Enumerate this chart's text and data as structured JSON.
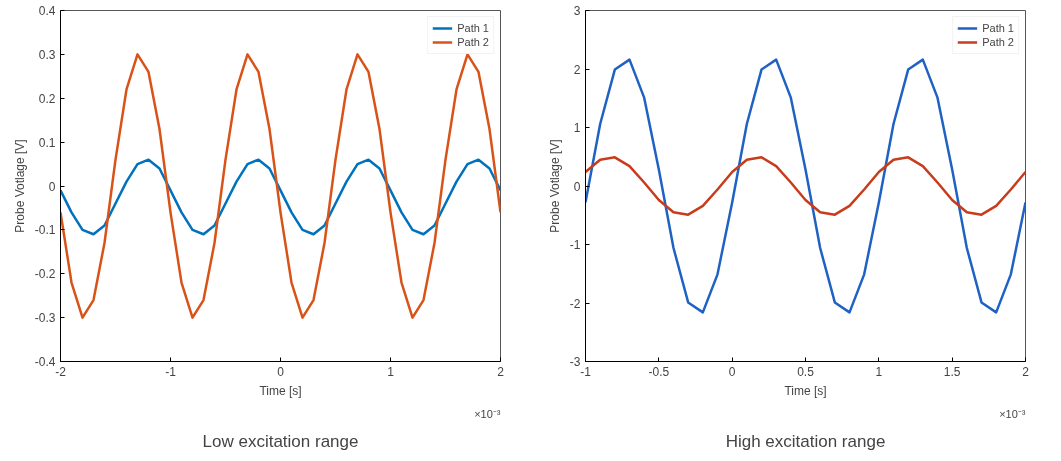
{
  "chart_data": [
    {
      "type": "line",
      "xlabel": "Time [s]",
      "ylabel": "Probe Votlage [V]",
      "xlim": [
        -2,
        2
      ],
      "ylim": [
        -0.4,
        0.4
      ],
      "xticks": [
        -2,
        -1,
        0,
        1,
        2
      ],
      "yticks": [
        -0.4,
        -0.3,
        -0.2,
        -0.1,
        0,
        0.1,
        0.2,
        0.3,
        0.4
      ],
      "grid": false,
      "legend": "top right",
      "annotations": [
        "×10⁻³",
        "Low excitation range"
      ],
      "x": [
        -2,
        -1.9,
        -1.8,
        -1.7,
        -1.6,
        -1.5,
        -1.4,
        -1.3,
        -1.2,
        -1.1,
        -1,
        -0.9,
        -0.8,
        -0.7,
        -0.6,
        -0.5,
        -0.4,
        -0.3,
        -0.2,
        -0.1,
        0,
        0.1,
        0.2,
        0.3,
        0.4,
        0.5,
        0.6,
        0.7,
        0.8,
        0.9,
        1,
        1.1,
        1.2,
        1.3,
        1.4,
        1.5,
        1.6,
        1.7,
        1.8,
        1.9,
        2
      ],
      "series": [
        {
          "name": "Path 1",
          "color": "#0072bd",
          "values": [
            -0.01,
            -0.06,
            -0.1,
            -0.11,
            -0.09,
            -0.04,
            0.01,
            0.05,
            0.06,
            0.04,
            -0.01,
            -0.06,
            -0.1,
            -0.11,
            -0.09,
            -0.04,
            0.01,
            0.05,
            0.06,
            0.04,
            -0.01,
            -0.06,
            -0.1,
            -0.11,
            -0.09,
            -0.04,
            0.01,
            0.05,
            0.06,
            0.04,
            -0.01,
            -0.06,
            -0.1,
            -0.11,
            -0.09,
            -0.04,
            0.01,
            0.05,
            0.06,
            0.04,
            -0.01
          ]
        },
        {
          "name": "Path 2",
          "color": "#d95319",
          "values": [
            -0.06,
            -0.22,
            -0.3,
            -0.26,
            -0.13,
            0.06,
            0.22,
            0.3,
            0.26,
            0.13,
            -0.06,
            -0.22,
            -0.3,
            -0.26,
            -0.13,
            0.06,
            0.22,
            0.3,
            0.26,
            0.13,
            -0.06,
            -0.22,
            -0.3,
            -0.26,
            -0.13,
            0.06,
            0.22,
            0.3,
            0.26,
            0.13,
            -0.06,
            -0.22,
            -0.3,
            -0.26,
            -0.13,
            0.06,
            0.22,
            0.3,
            0.26,
            0.13,
            -0.06
          ]
        }
      ]
    },
    {
      "type": "line",
      "xlabel": "Time [s]",
      "ylabel": "Probe Votlage [V]",
      "xlim": [
        -1,
        2
      ],
      "ylim": [
        -3,
        3
      ],
      "xticks": [
        -1,
        -0.5,
        0,
        0.5,
        1,
        1.5,
        2
      ],
      "yticks": [
        -3,
        -2,
        -1,
        0,
        1,
        2,
        3
      ],
      "grid": false,
      "legend": "top right",
      "annotations": [
        "×10⁻³",
        "High excitation range"
      ],
      "x": [
        -1,
        -0.9,
        -0.8,
        -0.7,
        -0.6,
        -0.5,
        -0.4,
        -0.3,
        -0.2,
        -0.1,
        0,
        0.1,
        0.2,
        0.3,
        0.4,
        0.5,
        0.6,
        0.7,
        0.8,
        0.9,
        1,
        1.1,
        1.2,
        1.3,
        1.4,
        1.5,
        1.6,
        1.7,
        1.8,
        1.9,
        2
      ],
      "series": [
        {
          "name": "Path 1",
          "color": "#1f62c4",
          "values": [
            -0.28,
            1.06,
            1.99,
            2.16,
            1.51,
            0.28,
            -1.06,
            -1.99,
            -2.16,
            -1.51,
            -0.28,
            1.06,
            1.99,
            2.16,
            1.51,
            0.28,
            -1.06,
            -1.99,
            -2.16,
            -1.51,
            -0.28,
            1.06,
            1.99,
            2.16,
            1.51,
            0.28,
            -1.06,
            -1.99,
            -2.16,
            -1.51,
            -0.28
          ]
        },
        {
          "name": "Path 2",
          "color": "#c83c1c",
          "values": [
            0.24,
            0.45,
            0.49,
            0.34,
            0.06,
            -0.24,
            -0.45,
            -0.49,
            -0.34,
            -0.06,
            0.24,
            0.45,
            0.49,
            0.34,
            0.06,
            -0.24,
            -0.45,
            -0.49,
            -0.34,
            -0.06,
            0.24,
            0.45,
            0.49,
            0.34,
            0.06,
            -0.24,
            -0.45,
            -0.49,
            -0.34,
            -0.06,
            0.24
          ]
        }
      ]
    }
  ]
}
